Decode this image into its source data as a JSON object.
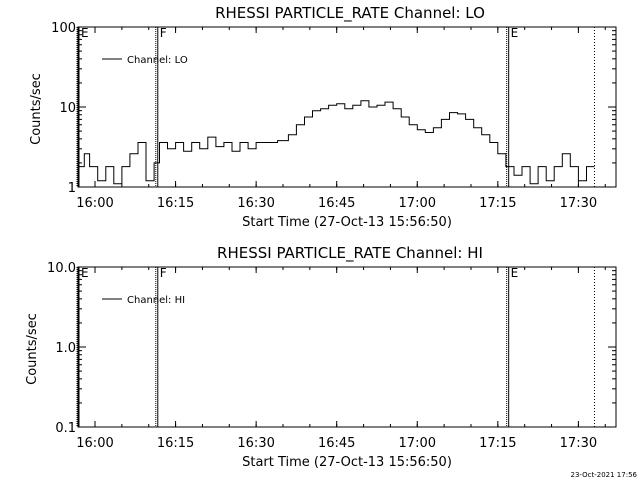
{
  "timestamp": "23-Oct-2021 17:56",
  "chart_data": [
    {
      "type": "line",
      "title": "RHESSI PARTICLE_RATE Channel: LO",
      "xlabel": "Start Time (27-Oct-13 15:56:50)",
      "ylabel": "Counts/sec",
      "y_scale": "log",
      "xlim": [
        "15:56:50",
        "17:37:00"
      ],
      "ylim": [
        1,
        100
      ],
      "x_ticks": [
        "16:00",
        "16:15",
        "16:30",
        "16:45",
        "17:00",
        "17:15",
        "17:30"
      ],
      "y_ticks": [
        "1",
        "10",
        "100"
      ],
      "legend": "top-left",
      "series": [
        {
          "name": "Channel: LO",
          "x": [
            "15:56:50",
            "15:58:00",
            "15:59:00",
            "16:00:30",
            "16:02:00",
            "16:03:30",
            "16:05:00",
            "16:06:30",
            "16:08:00",
            "16:09:30",
            "16:11:00",
            "16:12:00",
            "16:13:30",
            "16:15:00",
            "16:16:30",
            "16:18:00",
            "16:19:30",
            "16:21:00",
            "16:22:30",
            "16:24:00",
            "16:25:30",
            "16:27:00",
            "16:28:30",
            "16:30:00",
            "16:32:00",
            "16:34:00",
            "16:36:00",
            "16:37:30",
            "16:39:00",
            "16:40:30",
            "16:42:00",
            "16:43:30",
            "16:45:00",
            "16:46:30",
            "16:48:00",
            "16:49:30",
            "16:51:00",
            "16:52:30",
            "16:54:00",
            "16:55:30",
            "16:57:00",
            "16:58:30",
            "17:00:00",
            "17:01:30",
            "17:03:00",
            "17:04:30",
            "17:06:00",
            "17:07:30",
            "17:09:00",
            "17:10:30",
            "17:12:00",
            "17:13:30",
            "17:15:00",
            "17:16:30",
            "17:18:00",
            "17:19:30",
            "17:21:00",
            "17:22:30",
            "17:24:00",
            "17:25:30",
            "17:27:00",
            "17:28:30",
            "17:30:00",
            "17:31:30",
            "17:33:00"
          ],
          "y": [
            1.8,
            2.6,
            1.8,
            1.2,
            1.8,
            1.1,
            1.8,
            2.6,
            3.6,
            1.2,
            2.0,
            3.6,
            3.0,
            3.6,
            2.8,
            3.6,
            3.0,
            4.2,
            3.2,
            3.6,
            2.8,
            3.6,
            3.0,
            3.6,
            3.6,
            3.8,
            4.5,
            6.0,
            7.5,
            9.0,
            9.5,
            10.5,
            11.0,
            9.5,
            10.5,
            12.0,
            10.0,
            10.5,
            11.5,
            9.5,
            7.5,
            6.0,
            5.2,
            4.8,
            5.5,
            7.0,
            8.5,
            8.2,
            7.0,
            5.5,
            4.5,
            3.6,
            2.6,
            1.8,
            1.4,
            1.8,
            1.1,
            1.8,
            1.2,
            1.8,
            2.6,
            1.8,
            1.2,
            1.8,
            1.8
          ]
        }
      ],
      "markers": [
        {
          "label": "E",
          "time": "15:56:50",
          "style": "solid"
        },
        {
          "label": "F",
          "time": "16:11:30",
          "style": "solid"
        },
        {
          "label": "E",
          "time": "17:16:50",
          "style": "solid"
        },
        {
          "label": "",
          "time": "17:33:00",
          "style": "dotted"
        }
      ]
    },
    {
      "type": "line",
      "title": "RHESSI PARTICLE_RATE Channel: HI",
      "xlabel": "Start Time (27-Oct-13 15:56:50)",
      "ylabel": "Counts/sec",
      "y_scale": "log",
      "xlim": [
        "15:56:50",
        "17:37:00"
      ],
      "ylim": [
        0.1,
        10.0
      ],
      "x_ticks": [
        "16:00",
        "16:15",
        "16:30",
        "16:45",
        "17:00",
        "17:15",
        "17:30"
      ],
      "y_ticks": [
        "0.1",
        "1.0",
        "10.0"
      ],
      "legend": "top-left",
      "series": [
        {
          "name": "Channel: HI",
          "x": [],
          "y": []
        }
      ],
      "markers": [
        {
          "label": "E",
          "time": "15:56:50",
          "style": "solid"
        },
        {
          "label": "F",
          "time": "16:11:30",
          "style": "solid"
        },
        {
          "label": "E",
          "time": "17:16:50",
          "style": "solid"
        },
        {
          "label": "",
          "time": "17:33:00",
          "style": "dotted"
        }
      ]
    }
  ]
}
